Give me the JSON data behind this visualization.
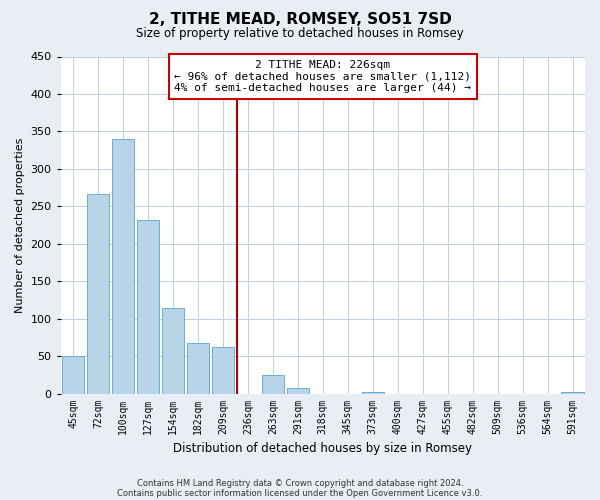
{
  "title": "2, TITHE MEAD, ROMSEY, SO51 7SD",
  "subtitle": "Size of property relative to detached houses in Romsey",
  "xlabel": "Distribution of detached houses by size in Romsey",
  "ylabel": "Number of detached properties",
  "bar_labels": [
    "45sqm",
    "72sqm",
    "100sqm",
    "127sqm",
    "154sqm",
    "182sqm",
    "209sqm",
    "236sqm",
    "263sqm",
    "291sqm",
    "318sqm",
    "345sqm",
    "373sqm",
    "400sqm",
    "427sqm",
    "455sqm",
    "482sqm",
    "509sqm",
    "536sqm",
    "564sqm",
    "591sqm"
  ],
  "bar_values": [
    50,
    267,
    340,
    232,
    114,
    68,
    62,
    0,
    25,
    7,
    0,
    0,
    2,
    0,
    0,
    0,
    0,
    0,
    0,
    0,
    2
  ],
  "bar_color": "#b8d4e8",
  "bar_edge_color": "#6aaed6",
  "vline_color": "#aa0000",
  "vline_x_index": 7,
  "annotation_title": "2 TITHE MEAD: 226sqm",
  "annotation_line1": "← 96% of detached houses are smaller (1,112)",
  "annotation_line2": "4% of semi-detached houses are larger (44) →",
  "ylim": [
    0,
    450
  ],
  "yticks": [
    0,
    50,
    100,
    150,
    200,
    250,
    300,
    350,
    400,
    450
  ],
  "footnote1": "Contains HM Land Registry data © Crown copyright and database right 2024.",
  "footnote2": "Contains public sector information licensed under the Open Government Licence v3.0.",
  "bg_color": "#e8eef4",
  "plot_bg_color": "#ffffff",
  "grid_color": "#c0cfe0"
}
